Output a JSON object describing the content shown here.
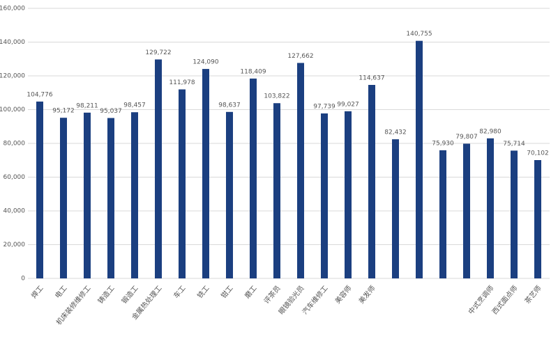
{
  "chart_data": {
    "type": "bar",
    "categories": [
      "焊工",
      "电工",
      "机床装修维修工",
      "铸造工",
      "锻造工",
      "金属热处理工",
      "车工",
      "铣工",
      "钳工",
      "磨工",
      "评茶员",
      "眼镜验光员",
      "汽车维修工",
      "美容师",
      "美发师",
      null,
      null,
      null,
      null,
      "中式烹调师",
      "西式面点师",
      "茶艺师"
    ],
    "values": [
      104776,
      95172,
      98211,
      95037,
      98457,
      129722,
      111978,
      124090,
      98637,
      118409,
      103822,
      127662,
      97739,
      99027,
      114637,
      82432,
      140755,
      75930,
      79807,
      82980,
      75714,
      70102
    ],
    "value_labels": [
      "104,776",
      "95,172",
      "98,211",
      "95,037",
      "98,457",
      "129,722",
      "111,978",
      "124,090",
      "98,637",
      "118,409",
      "103,822",
      "127,662",
      "97,739",
      "99,027",
      "114,637",
      "82,432",
      "140,755",
      "75,930",
      "79,807",
      "82,980",
      "75,714",
      "70,102"
    ],
    "color": "#1b3f80",
    "ylim": [
      0,
      160000
    ],
    "yticks": [
      0,
      {
        "value": 20000,
        "label": "20,000"
      },
      {
        "value": 40000,
        "label": "40,000"
      },
      {
        "value": 60000,
        "label": "60,000"
      },
      {
        "value": 80000,
        "label": "80,000"
      },
      {
        "value": 100000,
        "label": "100,000"
      },
      {
        "value": 120000,
        "label": "120,000"
      },
      {
        "value": 140000,
        "label": "140,000"
      },
      {
        "value": 160000,
        "label": "160,000"
      }
    ],
    "grid": true
  }
}
